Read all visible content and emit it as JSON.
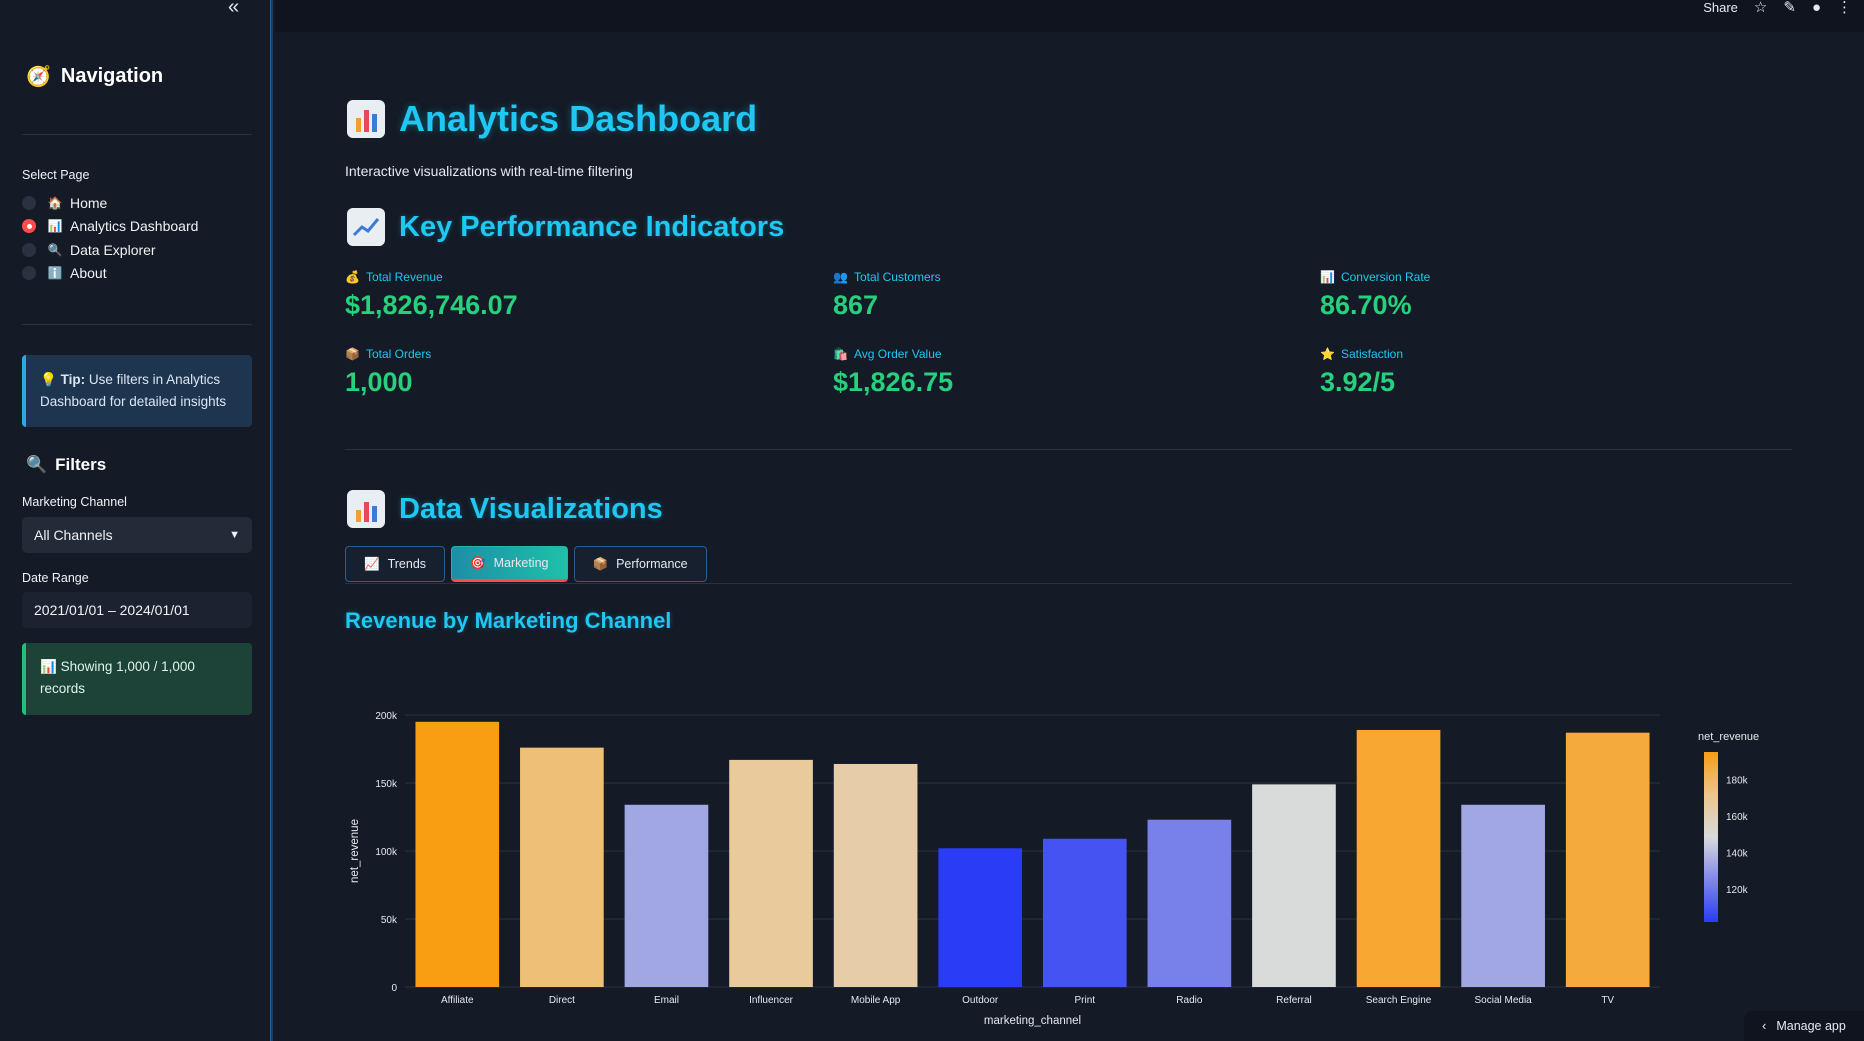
{
  "sidebar": {
    "nav_title": "Navigation",
    "select_page_label": "Select Page",
    "pages": [
      {
        "label": "Home",
        "icon": "🏠",
        "selected": false
      },
      {
        "label": "Analytics Dashboard",
        "icon": "📊",
        "selected": true
      },
      {
        "label": "Data Explorer",
        "icon": "🔍",
        "selected": false
      },
      {
        "label": "About",
        "icon": "ℹ️",
        "selected": false
      }
    ],
    "tip_strong": "Tip:",
    "tip_text": " Use filters in Analytics Dashboard for detailed insights",
    "filters_title": "Filters",
    "channel_label": "Marketing Channel",
    "channel_value": "All Channels",
    "date_label": "Date Range",
    "date_value": "2021/01/01 – 2024/01/01",
    "records_text": "Showing 1,000 / 1,000 records"
  },
  "topbar": {
    "share_label": "Share"
  },
  "main": {
    "title": "Analytics Dashboard",
    "subtitle": "Interactive visualizations with real-time filtering",
    "kpi_title": "Key Performance Indicators",
    "kpis": [
      {
        "label": "Total Revenue",
        "value": "$1,826,746.07",
        "icon": "💰"
      },
      {
        "label": "Total Customers",
        "value": "867",
        "icon": "👥"
      },
      {
        "label": "Conversion Rate",
        "value": "86.70%",
        "icon": "📊"
      },
      {
        "label": "Total Orders",
        "value": "1,000",
        "icon": "📦"
      },
      {
        "label": "Avg Order Value",
        "value": "$1,826.75",
        "icon": "🛍️"
      },
      {
        "label": "Satisfaction",
        "value": "3.92/5",
        "icon": "⭐"
      }
    ],
    "viz_title": "Data Visualizations",
    "tabs": [
      {
        "label": "Trends",
        "icon": "📈",
        "active": false
      },
      {
        "label": "Marketing",
        "icon": "🎯",
        "active": true
      },
      {
        "label": "Performance",
        "icon": "📦",
        "active": false
      }
    ],
    "chart_title": "Revenue by Marketing Channel",
    "manage_app": "Manage app"
  },
  "chart_data": {
    "type": "bar",
    "categories": [
      "Affiliate",
      "Direct",
      "Email",
      "Influencer",
      "Mobile App",
      "Outdoor",
      "Print",
      "Radio",
      "Referral",
      "Search Engine",
      "Social Media",
      "TV"
    ],
    "values": [
      195000,
      176000,
      134000,
      167000,
      164000,
      102000,
      109000,
      123000,
      149000,
      189000,
      134000,
      187000
    ],
    "xlabel": "marketing_channel",
    "ylabel": "net_revenue",
    "ylim": [
      0,
      200000
    ],
    "yticks": [
      0,
      50000,
      100000,
      150000,
      200000
    ],
    "ytick_labels": [
      "0",
      "50k",
      "100k",
      "150k",
      "200k"
    ],
    "colorbar": {
      "title": "net_revenue",
      "range": [
        102000,
        195000
      ],
      "ticks": [
        120000,
        140000,
        160000,
        180000
      ],
      "tick_labels": [
        "120k",
        "140k",
        "160k",
        "180k"
      ],
      "colors": [
        "#2a3cf5",
        "#8088e8",
        "#d9dadc",
        "#ecc68d",
        "#f99d12"
      ]
    },
    "grid": true
  }
}
